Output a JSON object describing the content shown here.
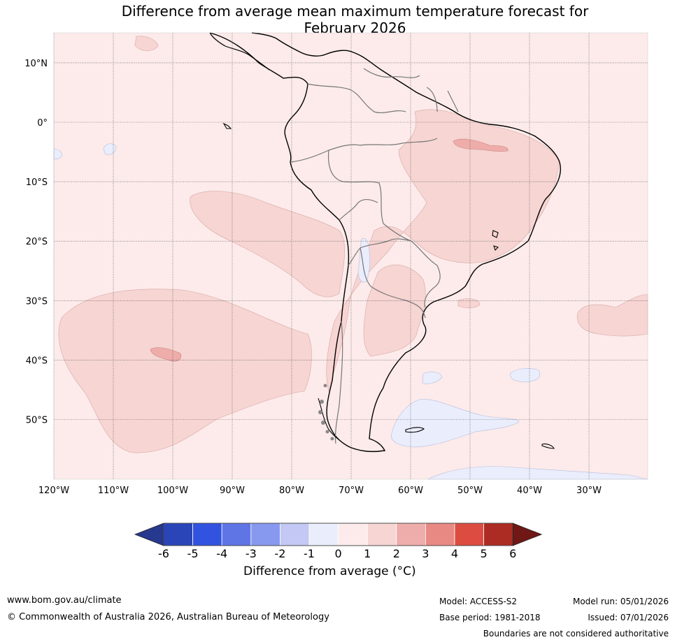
{
  "title_line1": "Difference from average mean maximum temperature forecast for",
  "title_line2": "February 2026",
  "lat_labels": [
    "10°N",
    "0°",
    "10°S",
    "20°S",
    "30°S",
    "40°S",
    "50°S"
  ],
  "lon_labels": [
    "120°W",
    "110°W",
    "100°W",
    "90°W",
    "80°W",
    "70°W",
    "60°W",
    "50°W",
    "40°W",
    "30°W"
  ],
  "colorbar": {
    "ticks": [
      "-6",
      "-5",
      "-4",
      "-3",
      "-2",
      "-1",
      "0",
      "1",
      "2",
      "3",
      "4",
      "5",
      "6"
    ],
    "colors": [
      "#27388f",
      "#2a45b8",
      "#3153e0",
      "#5f75e6",
      "#8799ee",
      "#c3c9f4",
      "#eaedfb",
      "#fcebea",
      "#f6d5d3",
      "#eeadaa",
      "#e98983",
      "#dd4c41",
      "#ac2b22",
      "#6f1816"
    ],
    "label": "Difference from average (°C)"
  },
  "footer": {
    "url": "www.bom.gov.au/climate",
    "copyright": "© Commonwealth of Australia 2026, Australian Bureau of Meteorology",
    "model": "Model: ACCESS-S2",
    "base_period": "Base period: 1981-2018",
    "model_run": "Model run: 05/01/2026",
    "issued": "Issued: 07/01/2026",
    "disclaimer": "Boundaries are not considered authoritative"
  }
}
